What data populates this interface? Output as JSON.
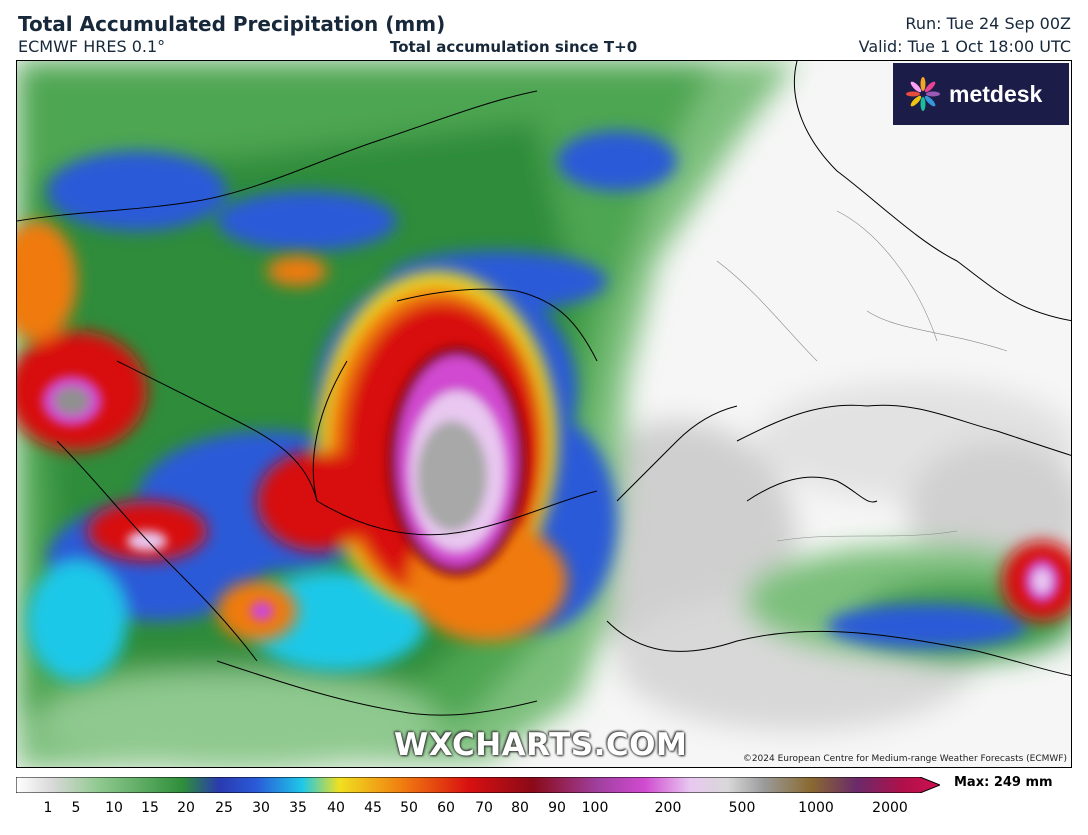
{
  "header": {
    "title": "Total Accumulated Precipitation (mm)",
    "model": "ECMWF HRES 0.1°",
    "subtitle": "Total accumulation since T+0",
    "run": "Run: Tue 24 Sep 00Z",
    "valid": "Valid: Tue 1 Oct 18:00 UTC"
  },
  "logo": {
    "text": "metdesk",
    "icon": "metdesk-flower-icon"
  },
  "watermark": "WXCHARTS.COM",
  "copyright": "©2024 European Centre for Medium-range Weather Forecasts (ECMWF)",
  "legend": {
    "ticks": [
      "1",
      "5",
      "10",
      "15",
      "20",
      "25",
      "30",
      "35",
      "40",
      "45",
      "50",
      "60",
      "70",
      "80",
      "90",
      "100",
      "200",
      "500",
      "1000",
      "2000"
    ],
    "max": "Max: 249 mm",
    "colors": {
      "trace": "#d8d8d8",
      "light_green": "#8fc98f",
      "green": "#2f8f3a",
      "blue": "#2a5ad8",
      "cyan": "#1ec8e8",
      "yellow": "#f0e020",
      "orange": "#f07a10",
      "red": "#d81010",
      "dark_red": "#8a0a18",
      "magenta": "#d04ad0",
      "pale_violet": "#e8c8f0",
      "grey_high": "#9a9a9a",
      "brown": "#8a6a30"
    }
  }
}
